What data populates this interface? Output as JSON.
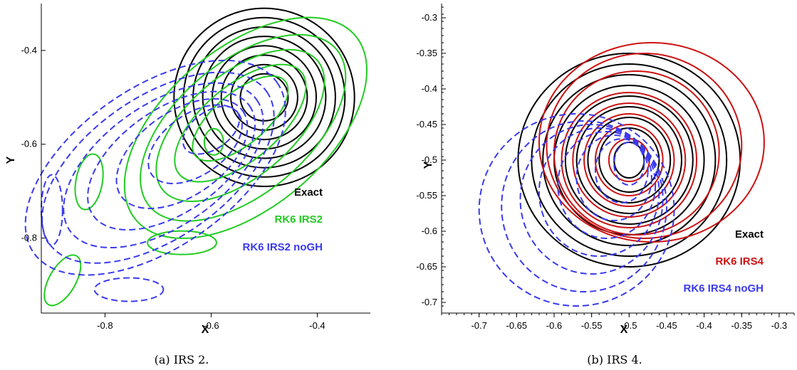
{
  "chart_data": [
    {
      "type": "contour",
      "caption": "(a) IRS 2.",
      "xlabel": "X",
      "ylabel": "Y",
      "xlim": [
        -0.92,
        -0.3
      ],
      "ylim": [
        -0.96,
        -0.3
      ],
      "xticks": [
        -0.8,
        -0.6,
        -0.4
      ],
      "yticks": [
        -0.4,
        -0.6,
        -0.8
      ],
      "xtick_labels": [
        "-0.8",
        "-0.6",
        "-0.4"
      ],
      "ytick_labels": [
        "-0.4",
        "-0.6",
        "-0.8"
      ],
      "legend": [
        {
          "label": "Exact",
          "color": "#000000"
        },
        {
          "label": "RK6 IRS2",
          "color": "#22cc22"
        },
        {
          "label": "RK6 IRS2 noGH",
          "color": "#3a3aee"
        }
      ],
      "series": [
        {
          "name": "Exact",
          "color": "#000000",
          "style": "solid",
          "contours": [
            {
              "cx": -0.5,
              "cy": -0.5,
              "rx": 0.045,
              "ry": 0.05,
              "rot": 0
            },
            {
              "cx": -0.5,
              "cy": -0.5,
              "rx": 0.063,
              "ry": 0.07,
              "rot": 0
            },
            {
              "cx": -0.5,
              "cy": -0.5,
              "rx": 0.081,
              "ry": 0.09,
              "rot": 0
            },
            {
              "cx": -0.5,
              "cy": -0.5,
              "rx": 0.098,
              "ry": 0.11,
              "rot": 0
            },
            {
              "cx": -0.5,
              "cy": -0.5,
              "rx": 0.116,
              "ry": 0.13,
              "rot": 0
            },
            {
              "cx": -0.5,
              "cy": -0.5,
              "rx": 0.134,
              "ry": 0.15,
              "rot": 0
            },
            {
              "cx": -0.5,
              "cy": -0.5,
              "rx": 0.152,
              "ry": 0.17,
              "rot": 0
            },
            {
              "cx": -0.5,
              "cy": -0.5,
              "rx": 0.17,
              "ry": 0.19,
              "rot": 0
            }
          ]
        },
        {
          "name": "RK6 IRS2",
          "color": "#22cc22",
          "style": "solid",
          "contours": [
            {
              "cx": -0.595,
              "cy": -0.595,
              "rx": 0.018,
              "ry": 0.028,
              "rot": 0
            },
            {
              "cx": -0.545,
              "cy": -0.545,
              "rx": 0.11,
              "ry": 0.055,
              "rot": -40
            },
            {
              "cx": -0.545,
              "cy": -0.555,
              "rx": 0.15,
              "ry": 0.08,
              "rot": -40
            },
            {
              "cx": -0.545,
              "cy": -0.56,
              "rx": 0.19,
              "ry": 0.11,
              "rot": -40
            },
            {
              "cx": -0.54,
              "cy": -0.565,
              "rx": 0.23,
              "ry": 0.14,
              "rot": -40
            },
            {
              "cx": -0.535,
              "cy": -0.565,
              "rx": 0.27,
              "ry": 0.17,
              "rot": -40
            },
            {
              "cx": -0.83,
              "cy": -0.68,
              "rx": 0.025,
              "ry": 0.06,
              "rot": 10
            },
            {
              "cx": -0.88,
              "cy": -0.89,
              "rx": 0.025,
              "ry": 0.06,
              "rot": 30
            },
            {
              "cx": -0.655,
              "cy": -0.81,
              "rx": 0.065,
              "ry": 0.025,
              "rot": 0
            }
          ]
        },
        {
          "name": "RK6 IRS2 noGH",
          "color": "#3a3aee",
          "style": "dashed",
          "contours": [
            {
              "cx": -0.6,
              "cy": -0.57,
              "rx": 0.06,
              "ry": 0.04,
              "rot": -35
            },
            {
              "cx": -0.63,
              "cy": -0.6,
              "rx": 0.1,
              "ry": 0.065,
              "rot": -35
            },
            {
              "cx": -0.655,
              "cy": -0.62,
              "rx": 0.14,
              "ry": 0.09,
              "rot": -35
            },
            {
              "cx": -0.675,
              "cy": -0.635,
              "rx": 0.18,
              "ry": 0.11,
              "rot": -35
            },
            {
              "cx": -0.69,
              "cy": -0.645,
              "rx": 0.215,
              "ry": 0.13,
              "rot": -35
            },
            {
              "cx": -0.7,
              "cy": -0.65,
              "rx": 0.25,
              "ry": 0.15,
              "rot": -35
            },
            {
              "cx": -0.705,
              "cy": -0.65,
              "rx": 0.28,
              "ry": 0.17,
              "rot": -35
            },
            {
              "cx": -0.9,
              "cy": -0.74,
              "rx": 0.02,
              "ry": 0.075,
              "rot": 0
            },
            {
              "cx": -0.755,
              "cy": -0.91,
              "rx": 0.065,
              "ry": 0.025,
              "rot": 0
            }
          ]
        }
      ]
    },
    {
      "type": "contour",
      "caption": "(b) IRS 4.",
      "xlabel": "X",
      "ylabel": "Y",
      "xlim": [
        -0.75,
        -0.28
      ],
      "ylim": [
        -0.715,
        -0.28
      ],
      "xticks": [
        -0.7,
        -0.65,
        -0.6,
        -0.55,
        -0.5,
        -0.45,
        -0.4,
        -0.35,
        -0.3
      ],
      "yticks": [
        -0.3,
        -0.35,
        -0.4,
        -0.45,
        -0.5,
        -0.55,
        -0.6,
        -0.65,
        -0.7
      ],
      "xtick_labels": [
        "-0.7",
        "-0.65",
        "-0.6",
        "-0.55",
        "-0.5",
        "-0.45",
        "-0.4",
        "-0.35",
        "-0.3"
      ],
      "ytick_labels": [
        "-0.3",
        "-0.35",
        "-0.4",
        "-0.45",
        "-0.5",
        "-0.55",
        "-0.6",
        "-0.65",
        "-0.7"
      ],
      "legend": [
        {
          "label": "Exact",
          "color": "#000000"
        },
        {
          "label": "RK6 IRS4",
          "color": "#cc1111"
        },
        {
          "label": "RK6 IRS4 noGH",
          "color": "#3a3aee"
        }
      ],
      "series": [
        {
          "name": "Exact",
          "color": "#000000",
          "style": "solid",
          "contours": [
            {
              "cx": -0.5,
              "cy": -0.5,
              "rx": 0.02,
              "ry": 0.025,
              "rot": 0
            },
            {
              "cx": -0.5,
              "cy": -0.5,
              "rx": 0.04,
              "ry": 0.045,
              "rot": 0
            },
            {
              "cx": -0.5,
              "cy": -0.5,
              "rx": 0.055,
              "ry": 0.06,
              "rot": 0
            },
            {
              "cx": -0.5,
              "cy": -0.5,
              "rx": 0.07,
              "ry": 0.075,
              "rot": 0
            },
            {
              "cx": -0.5,
              "cy": -0.5,
              "rx": 0.085,
              "ry": 0.09,
              "rot": 0
            },
            {
              "cx": -0.5,
              "cy": -0.5,
              "rx": 0.1,
              "ry": 0.105,
              "rot": 0
            },
            {
              "cx": -0.5,
              "cy": -0.5,
              "rx": 0.115,
              "ry": 0.12,
              "rot": 0
            },
            {
              "cx": -0.5,
              "cy": -0.5,
              "rx": 0.13,
              "ry": 0.135,
              "rot": 0
            },
            {
              "cx": -0.5,
              "cy": -0.5,
              "rx": 0.148,
              "ry": 0.15,
              "rot": 0
            }
          ]
        },
        {
          "name": "RK6 IRS4",
          "color": "#cc1111",
          "style": "solid",
          "contours": [
            {
              "cx": -0.5,
              "cy": -0.5,
              "rx": 0.027,
              "ry": 0.03,
              "rot": 0
            },
            {
              "cx": -0.5,
              "cy": -0.5,
              "rx": 0.045,
              "ry": 0.05,
              "rot": 0
            },
            {
              "cx": -0.5,
              "cy": -0.5,
              "rx": 0.06,
              "ry": 0.065,
              "rot": 0
            },
            {
              "cx": -0.5,
              "cy": -0.5,
              "rx": 0.075,
              "ry": 0.08,
              "rot": 0
            },
            {
              "cx": -0.5,
              "cy": -0.5,
              "rx": 0.09,
              "ry": 0.095,
              "rot": 0
            },
            {
              "cx": -0.49,
              "cy": -0.49,
              "rx": 0.11,
              "ry": 0.115,
              "rot": 0
            },
            {
              "cx": -0.48,
              "cy": -0.48,
              "rx": 0.13,
              "ry": 0.13,
              "rot": 0
            },
            {
              "cx": -0.47,
              "cy": -0.475,
              "rx": 0.15,
              "ry": 0.14,
              "rot": 0
            }
          ]
        },
        {
          "name": "RK6 IRS4 noGH",
          "color": "#3a3aee",
          "style": "dashed",
          "contours": [
            {
              "cx": -0.5,
              "cy": -0.505,
              "rx": 0.02,
              "ry": 0.03,
              "rot": 0
            },
            {
              "cx": -0.51,
              "cy": -0.515,
              "rx": 0.035,
              "ry": 0.045,
              "rot": 0
            },
            {
              "cx": -0.52,
              "cy": -0.525,
              "rx": 0.05,
              "ry": 0.06,
              "rot": 0
            },
            {
              "cx": -0.53,
              "cy": -0.535,
              "rx": 0.065,
              "ry": 0.075,
              "rot": 0
            },
            {
              "cx": -0.54,
              "cy": -0.545,
              "rx": 0.08,
              "ry": 0.09,
              "rot": 0
            },
            {
              "cx": -0.55,
              "cy": -0.555,
              "rx": 0.095,
              "ry": 0.105,
              "rot": 0
            },
            {
              "cx": -0.56,
              "cy": -0.565,
              "rx": 0.11,
              "ry": 0.12,
              "rot": 0
            },
            {
              "cx": -0.57,
              "cy": -0.57,
              "rx": 0.13,
              "ry": 0.135,
              "rot": 0
            }
          ]
        }
      ]
    }
  ]
}
